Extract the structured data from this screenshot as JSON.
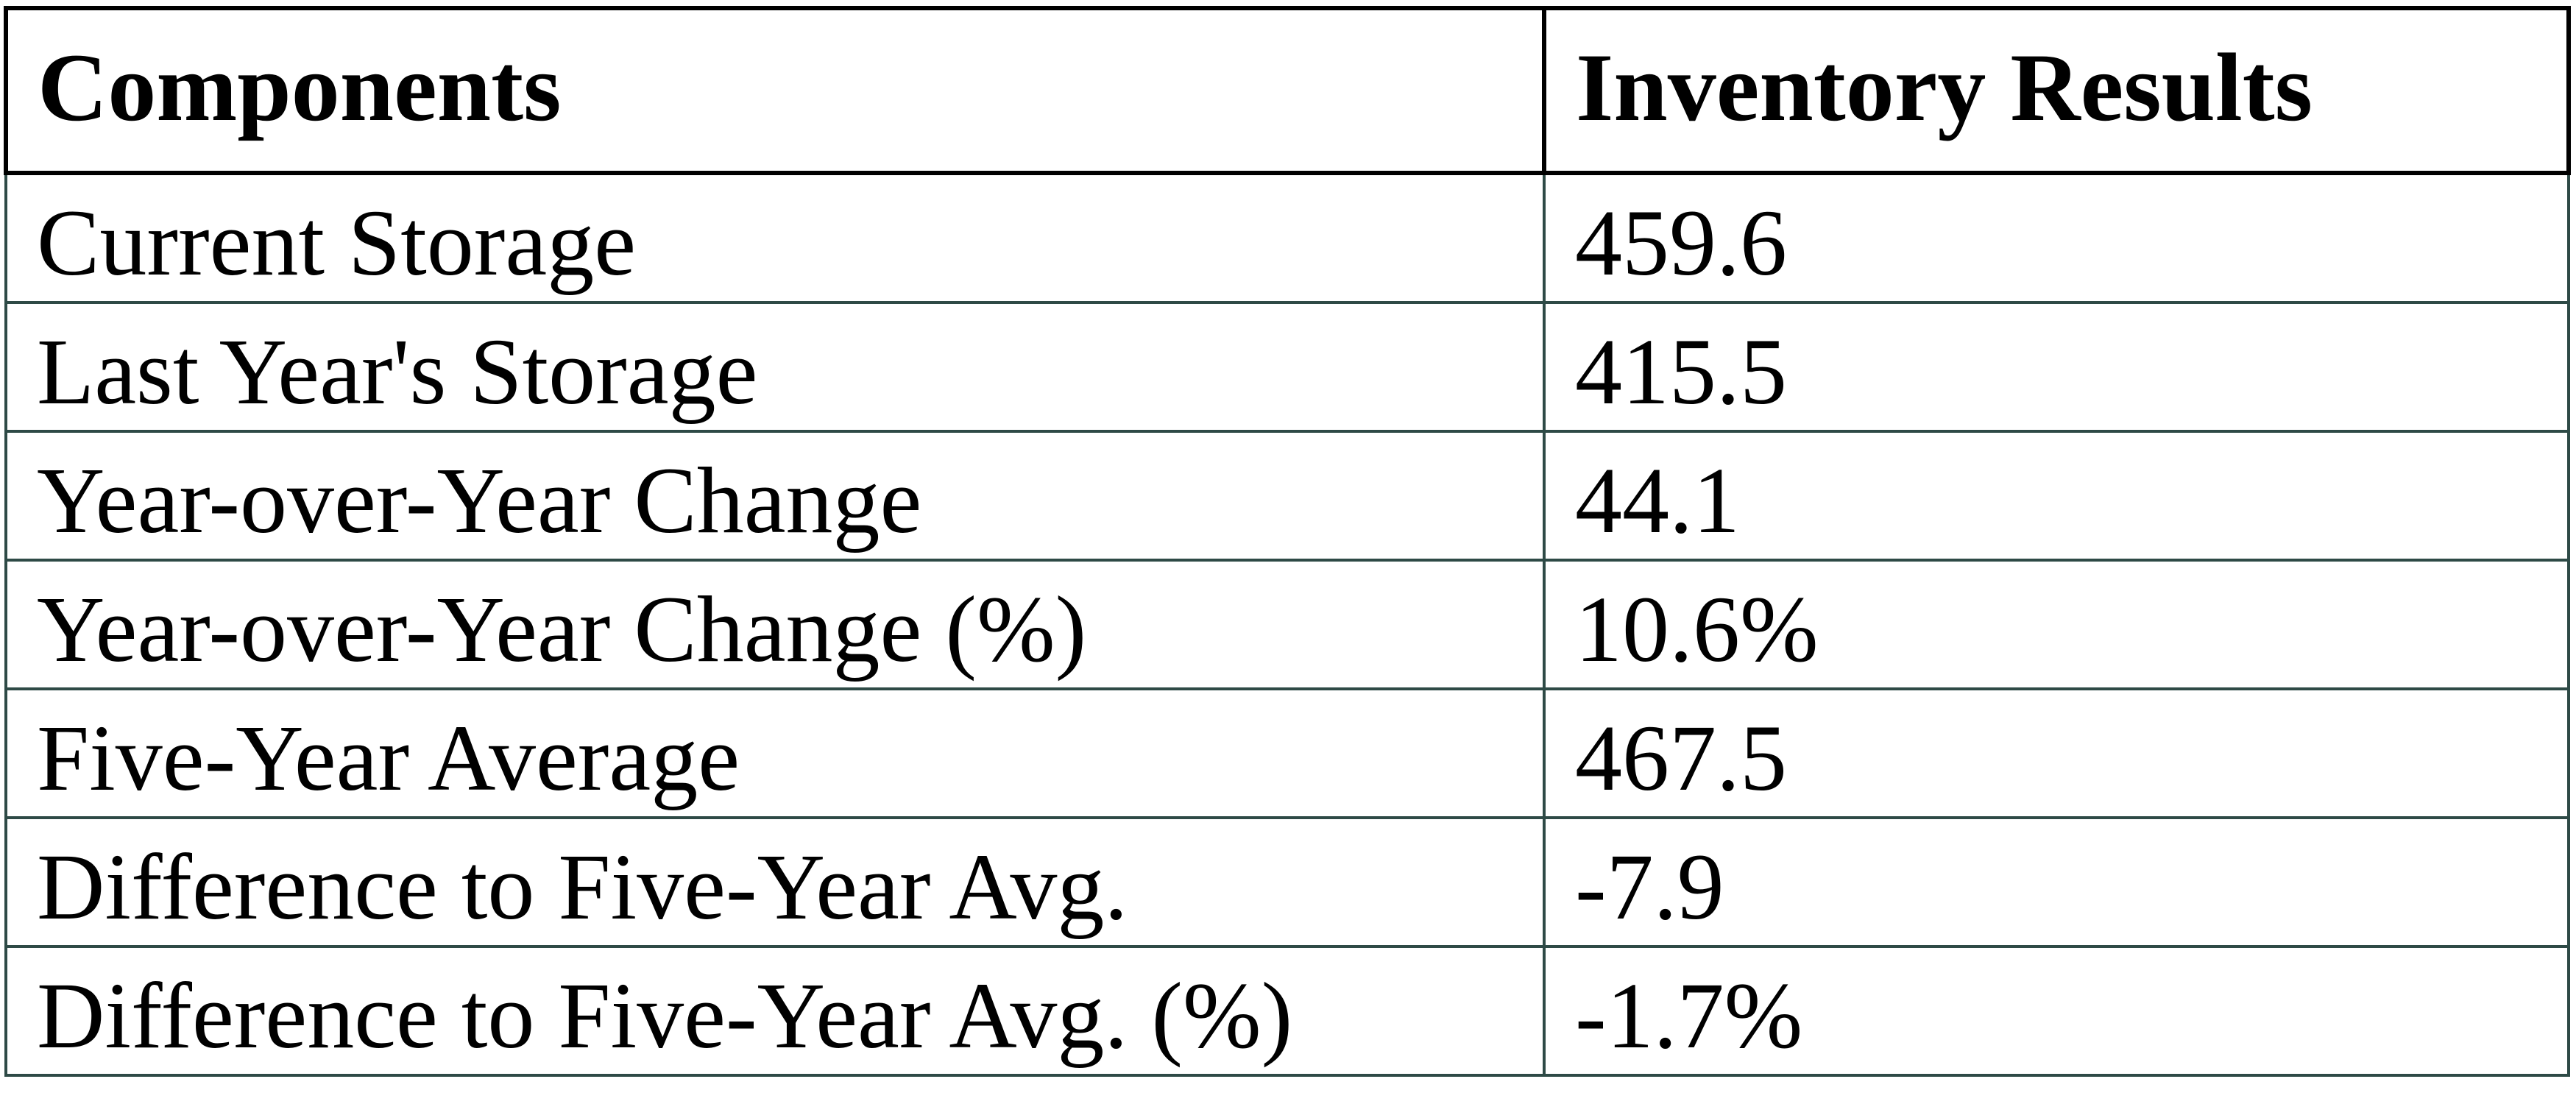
{
  "chart_data": {
    "type": "table",
    "columns": [
      "Components",
      "Inventory Results"
    ],
    "rows": [
      {
        "component": "Current Storage",
        "result": "459.6"
      },
      {
        "component": "Last Year's Storage",
        "result": "415.5"
      },
      {
        "component": "Year-over-Year Change",
        "result": "44.1"
      },
      {
        "component": "Year-over-Year Change (%)",
        "result": "10.6%"
      },
      {
        "component": "Five-Year Average",
        "result": "467.5"
      },
      {
        "component": "Difference to Five-Year Avg.",
        "result": "-7.9"
      },
      {
        "component": "Difference to Five-Year Avg. (%)",
        "result": "-1.7%"
      }
    ]
  },
  "colors": {
    "header_border": "#000000",
    "row_border": "#2e4a46",
    "text": "#000000",
    "background": "#ffffff"
  }
}
